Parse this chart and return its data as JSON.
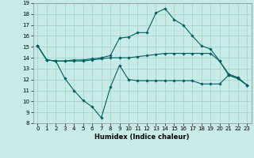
{
  "title": "",
  "xlabel": "Humidex (Indice chaleur)",
  "background_color": "#c8ebe8",
  "grid_color": "#a0d0cc",
  "line_color": "#006060",
  "xlim": [
    -0.5,
    23.5
  ],
  "ylim": [
    8,
    19
  ],
  "yticks": [
    8,
    9,
    10,
    11,
    12,
    13,
    14,
    15,
    16,
    17,
    18,
    19
  ],
  "xticks": [
    0,
    1,
    2,
    3,
    4,
    5,
    6,
    7,
    8,
    9,
    10,
    11,
    12,
    13,
    14,
    15,
    16,
    17,
    18,
    19,
    20,
    21,
    22,
    23
  ],
  "series": [
    {
      "x": [
        0,
        1,
        2,
        3,
        4,
        5,
        6,
        7,
        8,
        9,
        10,
        11,
        12,
        13,
        14,
        15,
        16,
        17,
        18,
        19,
        20,
        21,
        22,
        23
      ],
      "y": [
        15.1,
        13.8,
        13.7,
        13.7,
        13.8,
        13.8,
        13.9,
        14.0,
        14.2,
        15.8,
        15.9,
        16.3,
        16.3,
        18.1,
        18.5,
        17.5,
        17.0,
        16.0,
        15.1,
        14.8,
        13.7,
        12.5,
        12.2,
        11.5
      ]
    },
    {
      "x": [
        0,
        1,
        2,
        3,
        4,
        5,
        6,
        7,
        8,
        9,
        10,
        11,
        12,
        13,
        14,
        15,
        16,
        17,
        18,
        19,
        20,
        21,
        22,
        23
      ],
      "y": [
        15.1,
        13.8,
        13.7,
        13.7,
        13.7,
        13.7,
        13.8,
        13.9,
        14.0,
        14.0,
        14.0,
        14.1,
        14.2,
        14.3,
        14.4,
        14.4,
        14.4,
        14.4,
        14.4,
        14.4,
        13.7,
        12.4,
        12.1,
        11.5
      ]
    },
    {
      "x": [
        0,
        1,
        2,
        3,
        4,
        5,
        6,
        7,
        8,
        9,
        10,
        11,
        12,
        13,
        14,
        15,
        16,
        17,
        18,
        19,
        20,
        21,
        22,
        23
      ],
      "y": [
        15.1,
        13.8,
        13.7,
        12.1,
        11.0,
        10.1,
        9.5,
        8.5,
        11.3,
        13.3,
        12.0,
        11.9,
        11.9,
        11.9,
        11.9,
        11.9,
        11.9,
        11.9,
        11.6,
        11.6,
        11.6,
        12.4,
        12.1,
        11.5
      ]
    }
  ]
}
